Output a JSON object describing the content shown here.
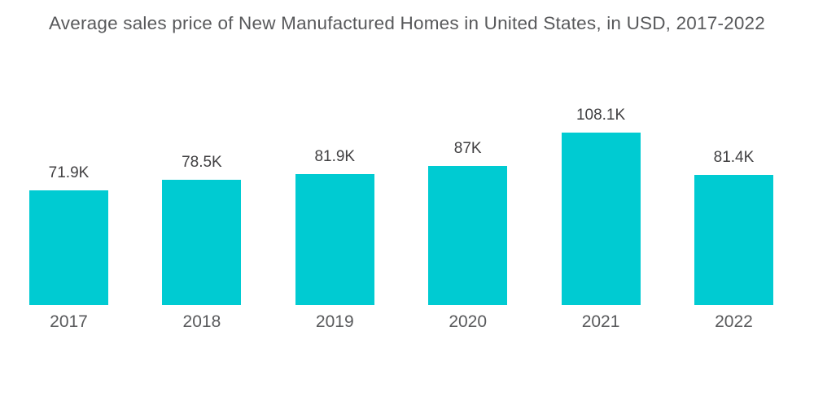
{
  "chart_data": {
    "type": "bar",
    "title": "Average sales price of New Manufactured Homes in United States, in USD, 2017-2022",
    "categories": [
      "2017",
      "2018",
      "2019",
      "2020",
      "2021",
      "2022"
    ],
    "values": [
      71.9,
      78.5,
      81.9,
      87,
      108.1,
      81.4
    ],
    "value_labels": [
      "71.9K",
      "78.5K",
      "81.9K",
      "87K",
      "108.1K",
      "81.4K"
    ],
    "xlabel": "",
    "ylabel": "",
    "ylim": [
      0,
      115
    ],
    "grid": false,
    "legend": false,
    "data_labels_position": "above-bars",
    "colors": {
      "bar": "#00cbd2",
      "title_text": "#58595b",
      "value_label_text": "#414042",
      "axis_label_text": "#58595b",
      "background": "#ffffff"
    }
  }
}
